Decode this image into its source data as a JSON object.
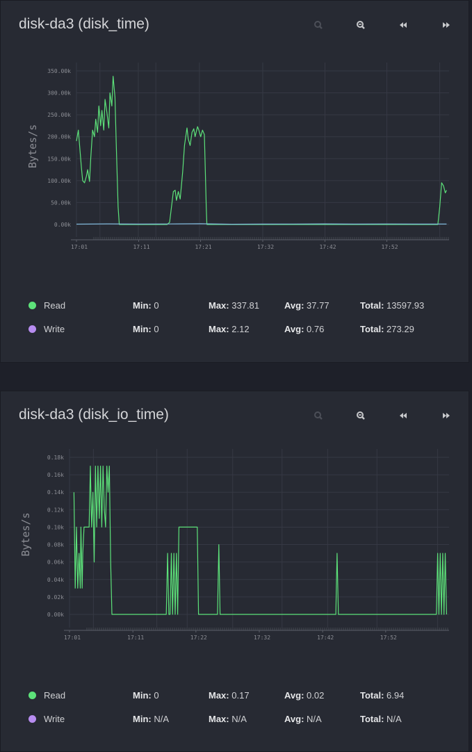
{
  "colors": {
    "panel_bg": "#272a33",
    "page_bg": "#1e2029",
    "grid": "#363944",
    "axis": "#5b5e68",
    "read": "#5de27a",
    "write": "#b78cf0",
    "write_line": "#7fb6d8"
  },
  "toolbar_icons": [
    "search-icon",
    "zoom-out-icon",
    "rewind-icon",
    "fast-forward-icon"
  ],
  "panels": [
    {
      "title": "disk-da3 (disk_time)",
      "legend": [
        {
          "name": "Read",
          "min_label": "Min:",
          "min": "0",
          "max_label": "Max:",
          "max": "337.81",
          "avg_label": "Avg:",
          "avg": "37.77",
          "total_label": "Total:",
          "total": "13597.93"
        },
        {
          "name": "Write",
          "min_label": "Min:",
          "min": "0",
          "max_label": "Max:",
          "max": "2.12",
          "avg_label": "Avg:",
          "avg": "0.76",
          "total_label": "Total:",
          "total": "273.29"
        }
      ]
    },
    {
      "title": "disk-da3 (disk_io_time)",
      "legend": [
        {
          "name": "Read",
          "min_label": "Min:",
          "min": "0",
          "max_label": "Max:",
          "max": "0.17",
          "avg_label": "Avg:",
          "avg": "0.02",
          "total_label": "Total:",
          "total": "6.94"
        },
        {
          "name": "Write",
          "min_label": "Min:",
          "min": "N/A",
          "max_label": "Max:",
          "max": "N/A",
          "avg_label": "Avg:",
          "avg": "N/A",
          "total_label": "Total:",
          "total": "N/A"
        }
      ]
    }
  ],
  "chart_data": [
    {
      "type": "line",
      "title": "disk-da3 (disk_time)",
      "ylabel": "Bytes/s",
      "xlabel": "",
      "x_ticks": [
        "17:01",
        "17:11",
        "17:21",
        "17:32",
        "17:42",
        "17:52"
      ],
      "y_ticks": [
        "0.00k",
        "50.00k",
        "100.00k",
        "150.00k",
        "200.00k",
        "250.00k",
        "300.00k",
        "350.00k"
      ],
      "ylim": [
        0,
        350000
      ],
      "xlim_minutes": [
        0,
        60
      ],
      "grid": true,
      "series": [
        {
          "name": "Read",
          "x": [
            0,
            0.3,
            0.8,
            1.0,
            1.3,
            1.6,
            1.8,
            2.1,
            2.3,
            2.6,
            2.9,
            3.1,
            3.4,
            3.6,
            3.9,
            4.1,
            4.4,
            4.6,
            4.9,
            5.2,
            5.4,
            5.7,
            5.9,
            6.2,
            6.4,
            6.7,
            6.9,
            7.1,
            7.4,
            8.0,
            10,
            12,
            14.6,
            15,
            15.3,
            15.6,
            15.9,
            16.1,
            16.4,
            16.7,
            17.1,
            17.4,
            17.8,
            18.0,
            18.3,
            18.6,
            18.9,
            19.1,
            19.5,
            19.7,
            20.0,
            20.3,
            20.6,
            20.9,
            21.0,
            21.3,
            25,
            35,
            45,
            50,
            55,
            57,
            58.2,
            58.5,
            58.8,
            59.1,
            59.4,
            59.6
          ],
          "y": [
            190000,
            215000,
            130000,
            100000,
            95000,
            110000,
            125000,
            98000,
            150000,
            215000,
            200000,
            240000,
            210000,
            270000,
            225000,
            260000,
            215000,
            285000,
            255000,
            220000,
            300000,
            270000,
            337810,
            290000,
            185000,
            40000,
            0,
            0,
            0,
            0,
            0,
            0,
            0,
            5000,
            40000,
            75000,
            78000,
            55000,
            75000,
            58000,
            120000,
            180000,
            220000,
            195000,
            180000,
            210000,
            218000,
            200000,
            223000,
            215000,
            200000,
            215000,
            205000,
            40000,
            0,
            0,
            0,
            0,
            0,
            0,
            0,
            0,
            0,
            40000,
            95000,
            88000,
            72000,
            78000
          ]
        },
        {
          "name": "Write",
          "x": [
            0,
            5,
            10,
            15,
            20,
            25,
            30,
            35,
            40,
            45,
            50,
            55,
            59.6
          ],
          "y": [
            800,
            1500,
            900,
            1200,
            1800,
            600,
            900,
            1100,
            1400,
            1000,
            1200,
            900,
            1000
          ]
        }
      ]
    },
    {
      "type": "line",
      "title": "disk-da3 (disk_io_time)",
      "ylabel": "Bytes/s",
      "xlabel": "",
      "x_ticks": [
        "17:01",
        "17:11",
        "17:22",
        "17:32",
        "17:42",
        "17:52"
      ],
      "y_ticks": [
        "0.00k",
        "0.02k",
        "0.04k",
        "0.06k",
        "0.08k",
        "0.10k",
        "0.12k",
        "0.14k",
        "0.16k",
        "0.18k"
      ],
      "ylim": [
        0,
        180
      ],
      "xlim_minutes": [
        0,
        60
      ],
      "grid": true,
      "series": [
        {
          "name": "Read",
          "x": [
            0.7,
            0.9,
            1.1,
            1.3,
            1.5,
            1.7,
            1.8,
            2.0,
            2.1,
            2.3,
            2.6,
            2.9,
            3.1,
            3.3,
            3.5,
            3.7,
            3.9,
            4.1,
            4.3,
            4.5,
            4.7,
            4.9,
            5.1,
            5.3,
            5.5,
            5.7,
            5.9,
            6.1,
            6.3,
            6.5,
            6.7,
            6.9,
            7.1,
            7.4,
            8.1,
            12,
            15.3,
            15.5,
            15.7,
            15.9,
            16.1,
            16.3,
            16.5,
            16.7,
            16.9,
            17.1,
            17.3,
            17.5,
            18.1,
            19.1,
            20.2,
            20.4,
            23.2,
            23.4,
            23.6,
            23.8,
            30,
            40,
            42.1,
            42.3,
            42.5,
            50,
            58.0,
            58.2,
            58.4,
            58.6,
            58.8,
            59.0,
            59.2,
            59.4,
            59.6
          ],
          "y": [
            140,
            30,
            100,
            30,
            70,
            30,
            100,
            30,
            70,
            100,
            100,
            100,
            100,
            170,
            100,
            140,
            60,
            170,
            100,
            170,
            110,
            170,
            100,
            170,
            120,
            100,
            170,
            140,
            170,
            60,
            0,
            0,
            0,
            0,
            0,
            0,
            0,
            70,
            0,
            0,
            70,
            0,
            70,
            0,
            70,
            0,
            100,
            100,
            100,
            100,
            100,
            0,
            0,
            0,
            80,
            0,
            0,
            0,
            0,
            70,
            0,
            0,
            0,
            70,
            0,
            70,
            0,
            70,
            0,
            70,
            0
          ]
        }
      ]
    }
  ]
}
